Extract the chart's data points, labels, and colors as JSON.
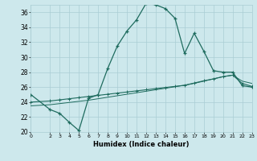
{
  "xlabel": "Humidex (Indice chaleur)",
  "bg_color": "#cde8ec",
  "grid_color": "#aacdd4",
  "line_color": "#1e6b5e",
  "xlim": [
    0,
    23
  ],
  "ylim": [
    20,
    37
  ],
  "xticks": [
    0,
    2,
    3,
    4,
    5,
    6,
    7,
    8,
    9,
    10,
    11,
    12,
    13,
    14,
    15,
    16,
    17,
    18,
    19,
    20,
    21,
    22,
    23
  ],
  "yticks": [
    20,
    22,
    24,
    26,
    28,
    30,
    32,
    34,
    36
  ],
  "series1_x": [
    0,
    2,
    3,
    4,
    5,
    6,
    7,
    8,
    9,
    10,
    11,
    12,
    13,
    14,
    15,
    16,
    17,
    18,
    19,
    20,
    21,
    22,
    23
  ],
  "series1_y": [
    25.0,
    23.0,
    22.5,
    21.3,
    20.2,
    24.5,
    25.0,
    28.5,
    31.5,
    33.5,
    35.0,
    37.2,
    37.0,
    36.5,
    35.2,
    30.5,
    33.2,
    30.8,
    28.2,
    28.0,
    28.0,
    26.2,
    26.0
  ],
  "series2_x": [
    0,
    2,
    3,
    4,
    5,
    6,
    7,
    8,
    9,
    10,
    11,
    12,
    13,
    14,
    15,
    16,
    17,
    18,
    19,
    20,
    21,
    22,
    23
  ],
  "series2_y": [
    24.0,
    24.15,
    24.3,
    24.45,
    24.6,
    24.75,
    24.9,
    25.05,
    25.2,
    25.35,
    25.5,
    25.65,
    25.8,
    25.95,
    26.1,
    26.25,
    26.55,
    26.85,
    27.1,
    27.4,
    27.6,
    26.5,
    26.1
  ],
  "series3_x": [
    0,
    2,
    3,
    4,
    5,
    6,
    7,
    8,
    9,
    10,
    11,
    12,
    13,
    14,
    15,
    16,
    17,
    18,
    19,
    20,
    21,
    22,
    23
  ],
  "series3_y": [
    23.5,
    23.65,
    23.8,
    23.95,
    24.1,
    24.25,
    24.45,
    24.65,
    24.85,
    25.05,
    25.25,
    25.45,
    25.65,
    25.85,
    26.05,
    26.25,
    26.5,
    26.8,
    27.1,
    27.4,
    27.6,
    26.8,
    26.5
  ]
}
